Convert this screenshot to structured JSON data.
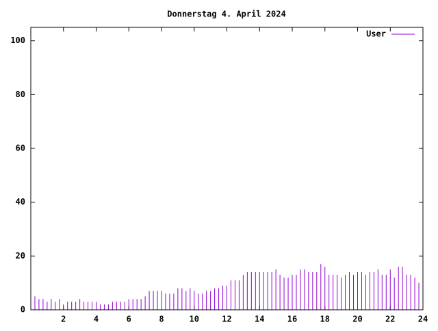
{
  "chart_data": {
    "type": "impulse",
    "title": "Donnerstag 4. April 2024",
    "x": [
      0,
      0.25,
      0.5,
      0.75,
      1,
      1.25,
      1.5,
      1.75,
      2,
      2.25,
      2.5,
      2.75,
      3,
      3.25,
      3.5,
      3.75,
      4,
      4.25,
      4.5,
      4.75,
      5,
      5.25,
      5.5,
      5.75,
      6,
      6.25,
      6.5,
      6.75,
      7,
      7.25,
      7.5,
      7.75,
      8,
      8.25,
      8.5,
      8.75,
      9,
      9.25,
      9.5,
      9.75,
      10,
      10.25,
      10.5,
      10.75,
      11,
      11.25,
      11.5,
      11.75,
      12,
      12.25,
      12.5,
      12.75,
      13,
      13.25,
      13.5,
      13.75,
      14,
      14.25,
      14.5,
      14.75,
      15,
      15.25,
      15.5,
      15.75,
      16,
      16.25,
      16.5,
      16.75,
      17,
      17.25,
      17.5,
      17.75,
      18,
      18.25,
      18.5,
      18.75,
      19,
      19.25,
      19.5,
      19.75,
      20,
      20.25,
      20.5,
      20.75,
      21,
      21.25,
      21.5,
      21.75,
      22,
      22.25,
      22.5,
      22.75,
      23,
      23.25,
      23.5,
      23.75
    ],
    "series": [
      {
        "name": "User",
        "color": "#9400d3",
        "values": [
          4,
          5,
          4,
          4,
          3,
          4,
          3,
          4,
          2,
          3,
          3,
          3,
          4,
          3,
          3,
          3,
          3,
          2,
          2,
          2,
          3,
          3,
          3,
          3,
          4,
          4,
          4,
          4,
          5,
          7,
          7,
          7,
          7,
          6,
          6,
          6,
          8,
          8,
          7,
          8,
          7,
          6,
          6,
          7,
          7,
          8,
          8,
          9,
          9,
          11,
          11,
          11,
          13,
          14,
          14,
          14,
          14,
          14,
          14,
          14,
          15,
          13,
          12,
          12,
          13,
          13,
          15,
          15,
          14,
          14,
          14,
          17,
          16,
          13,
          13,
          13,
          12,
          13,
          14,
          13,
          14,
          14,
          13,
          14,
          14,
          15,
          13,
          13,
          15,
          12,
          16,
          16,
          13,
          13,
          12,
          10
        ]
      }
    ],
    "xlim": [
      0,
      24
    ],
    "xticks": [
      2,
      4,
      6,
      8,
      10,
      12,
      14,
      16,
      18,
      20,
      22,
      24
    ],
    "ylim": [
      0,
      105
    ],
    "yticks": [
      0,
      20,
      40,
      60,
      80,
      100
    ],
    "legend": "top-right"
  }
}
